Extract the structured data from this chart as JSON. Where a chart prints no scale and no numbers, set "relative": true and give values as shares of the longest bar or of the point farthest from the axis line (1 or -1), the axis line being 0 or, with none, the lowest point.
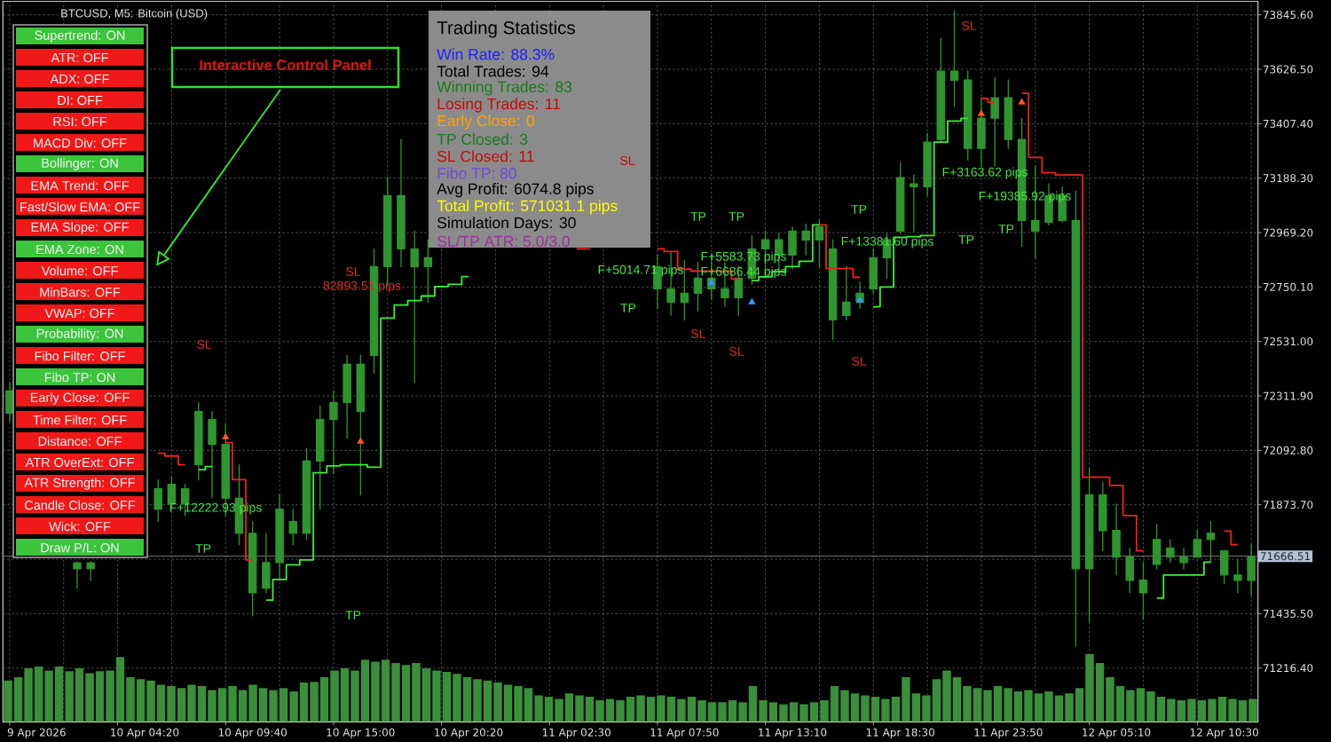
{
  "chart_data": [
    {
      "type": "candlestick",
      "title": "BTCUSD, M5: Bitcoin (USD)",
      "color": "#2f952f",
      "categories": [
        null,
        null,
        "9 Apr 2026",
        null,
        null,
        null,
        null,
        null,
        null,
        null,
        "10 Apr 04:20",
        null,
        null,
        null,
        null,
        null,
        null,
        null,
        "10 Apr 09:40",
        null,
        null,
        null,
        null,
        null,
        null,
        null,
        "10 Apr 15:00",
        null,
        null,
        null,
        null,
        null,
        null,
        null,
        "10 Apr 20:20",
        null,
        null,
        null,
        null,
        null,
        null,
        null,
        "11 Apr 02:30",
        null,
        null,
        null,
        null,
        null,
        null,
        null,
        "11 Apr 07:50",
        null,
        null,
        null,
        null,
        null,
        null,
        null,
        "11 Apr 13:10",
        null,
        null,
        null,
        null,
        null,
        null,
        null,
        "11 Apr 18:30",
        null,
        null,
        null,
        null,
        null,
        null,
        null,
        "11 Apr 23:50",
        null,
        null,
        null,
        null,
        null,
        null,
        null,
        "12 Apr 05:10",
        null,
        null,
        null,
        null,
        null,
        null,
        null,
        "12 Apr 10:30",
        null,
        null
      ],
      "ohlc": [
        [
          72242,
          72367,
          72206,
          72332
        ],
        null,
        null,
        null,
        null,
        [
          71640,
          71645,
          71538,
          71616
        ],
        [
          71616,
          71645,
          71570,
          71640
        ],
        null,
        null,
        null,
        null,
        [
          71856,
          71974,
          71806,
          71938
        ],
        [
          71877,
          71985,
          71856,
          71956
        ],
        [
          71877,
          71956,
          71831,
          71938
        ],
        [
          72035,
          72285,
          71974,
          72249
        ],
        [
          72217,
          72249,
          71902,
          72117
        ],
        [
          72117,
          72199,
          71830,
          71900
        ],
        [
          71900,
          72035,
          71713,
          71759
        ],
        [
          71759,
          71806,
          71427,
          71520
        ],
        [
          71538,
          71759,
          71520,
          71641
        ],
        [
          71641,
          71913,
          71570,
          71856
        ],
        [
          71806,
          71856,
          71713,
          71759
        ],
        [
          71759,
          72100,
          71734,
          72050
        ],
        [
          72050,
          72271,
          71856,
          72217
        ],
        [
          72217,
          72332,
          71999,
          72285
        ],
        [
          72285,
          72475,
          72142,
          72439
        ],
        [
          72439,
          72475,
          71913,
          72249
        ],
        [
          72475,
          72904,
          72403,
          72832
        ],
        [
          72832,
          73190,
          72761,
          73118
        ],
        [
          73118,
          73344,
          72832,
          72904
        ],
        [
          72904,
          72975,
          72367,
          72832
        ],
        [
          72832,
          72940,
          72689,
          72868
        ],
        null,
        null,
        null,
        null,
        null,
        null,
        null,
        null,
        null,
        null,
        null,
        null,
        null,
        null,
        null,
        null,
        [
          72832,
          72879,
          72664,
          72743
        ],
        [
          72743,
          72893,
          72636,
          72689
        ],
        [
          72689,
          72857,
          72618,
          72725
        ],
        [
          72725,
          72850,
          72653,
          72786
        ],
        [
          72786,
          72879,
          72700,
          72743
        ],
        [
          72743,
          72850,
          72671,
          72707
        ],
        [
          72707,
          72832,
          72636,
          72786
        ],
        [
          72786,
          72957,
          72761,
          72904
        ],
        [
          72904,
          72975,
          72807,
          72940
        ],
        [
          72940,
          72968,
          72814,
          72879
        ],
        [
          72879,
          72993,
          72822,
          72975
        ],
        [
          72975,
          73004,
          72879,
          72940
        ],
        [
          72940,
          73018,
          72832,
          72993
        ],
        [
          72904,
          72940,
          72539,
          72618
        ],
        [
          72636,
          72832,
          72618,
          72689
        ],
        [
          72689,
          72771,
          72664,
          72725
        ],
        [
          72743,
          72904,
          72725,
          72868
        ],
        [
          72868,
          72965,
          72786,
          72940
        ],
        [
          72975,
          73251,
          72965,
          73190
        ],
        [
          73165,
          73201,
          72975,
          73154
        ],
        [
          73154,
          73369,
          73118,
          73333
        ],
        [
          73344,
          73751,
          73333,
          73619
        ],
        [
          73619,
          73862,
          73476,
          73583
        ],
        [
          73583,
          73619,
          73261,
          73308
        ],
        [
          73308,
          73512,
          73236,
          73430
        ],
        [
          73430,
          73594,
          73236,
          73512
        ],
        [
          73512,
          73583,
          73308,
          73344
        ],
        [
          73344,
          73430,
          72914,
          73018
        ],
        [
          73018,
          73236,
          72868,
          72975
        ],
        [
          73011,
          73165,
          73000,
          73118
        ],
        [
          73118,
          73154,
          73011,
          73018
        ],
        [
          73018,
          73136,
          71305,
          71616
        ],
        [
          71616,
          72020,
          71402,
          71913
        ],
        [
          71913,
          71963,
          71688,
          71770
        ],
        [
          71770,
          71877,
          71591,
          71663
        ],
        [
          71663,
          71699,
          71520,
          71570
        ],
        [
          71570,
          71641,
          71412,
          71520
        ],
        [
          71634,
          71795,
          71616,
          71734
        ],
        [
          71700,
          71734,
          71641,
          71663
        ],
        [
          71663,
          71699,
          71616,
          71641
        ],
        [
          71663,
          71770,
          71663,
          71734
        ],
        [
          71734,
          71806,
          71641,
          71759
        ],
        [
          71688,
          71688,
          71556,
          71591
        ],
        [
          71591,
          71652,
          71520,
          71570
        ],
        [
          71570,
          71713,
          71509,
          71663
        ]
      ],
      "series": [
        {
          "type": "step",
          "color": "#3cee3c",
          "values": [
            null,
            null,
            null,
            null,
            null,
            null,
            null,
            null,
            null,
            null,
            null,
            null,
            null,
            null,
            72015,
            72028,
            null,
            null,
            null,
            71490,
            71573,
            71632,
            71652,
            72003,
            72030,
            72035,
            72035,
            72025,
            72625,
            72678,
            72696,
            72714,
            72752,
            72761,
            72792,
            null,
            null,
            null,
            null,
            null,
            null,
            null,
            null,
            null,
            null,
            null,
            null,
            null,
            null,
            null,
            null,
            null,
            null,
            null,
            null,
            72776,
            72791,
            72812,
            72832,
            72854,
            73000,
            null,
            null,
            null,
            72671,
            72750,
            72950,
            72953,
            72957,
            73333,
            73418,
            73429,
            null,
            null,
            null,
            null,
            null,
            null,
            null,
            null,
            null,
            null,
            null,
            null,
            null,
            71498,
            71591,
            71591,
            71591,
            71643,
            null,
            null,
            null
          ]
        },
        {
          "type": "step",
          "color": "#ee2020",
          "values": [
            null,
            null,
            null,
            null,
            null,
            null,
            null,
            null,
            null,
            null,
            null,
            72081,
            72070,
            72035,
            null,
            null,
            72124,
            71975,
            71652,
            null,
            null,
            null,
            null,
            null,
            null,
            null,
            null,
            null,
            null,
            null,
            null,
            null,
            null,
            null,
            null,
            null,
            null,
            null,
            null,
            null,
            null,
            null,
            72904,
            72904,
            null,
            null,
            null,
            null,
            72904,
            72893,
            72822,
            72814,
            72814,
            72814,
            72782,
            null,
            null,
            null,
            null,
            null,
            73000,
            72825,
            72825,
            72789,
            null,
            null,
            null,
            null,
            null,
            null,
            null,
            null,
            73509,
            73494,
            null,
            73530,
            73272,
            73210,
            73201,
            73201,
            71985,
            71985,
            71952,
            71830,
            71688,
            null,
            null,
            null,
            null,
            null,
            71768,
            71713,
            null
          ]
        },
        {
          "type": "scatter",
          "marker": "triangle",
          "color": "#ff5a1e",
          "values": [
            null,
            null,
            null,
            null,
            null,
            null,
            null,
            null,
            null,
            null,
            null,
            null,
            null,
            null,
            null,
            null,
            72146,
            null,
            null,
            null,
            null,
            null,
            null,
            null,
            null,
            null,
            72128,
            null,
            null,
            null,
            null,
            null,
            null,
            null,
            null,
            null,
            null,
            null,
            null,
            null,
            null,
            null,
            null,
            null,
            null,
            null,
            null,
            null,
            null,
            null,
            null,
            null,
            null,
            null,
            null,
            null,
            null,
            null,
            null,
            null,
            null,
            null,
            null,
            null,
            null,
            null,
            null,
            null,
            null,
            null,
            null,
            null,
            73447,
            null,
            null,
            73494,
            null,
            null,
            null,
            null,
            null,
            null,
            null,
            null,
            null,
            null,
            null,
            null,
            null,
            null,
            null,
            null,
            null
          ]
        },
        {
          "type": "scatter",
          "marker": "triangle",
          "color": "#2f9bff",
          "values": [
            null,
            null,
            null,
            null,
            null,
            null,
            null,
            null,
            null,
            null,
            null,
            null,
            null,
            null,
            null,
            null,
            null,
            null,
            null,
            null,
            null,
            null,
            null,
            null,
            null,
            null,
            null,
            null,
            null,
            null,
            null,
            null,
            null,
            null,
            null,
            null,
            null,
            null,
            null,
            null,
            null,
            null,
            null,
            null,
            null,
            null,
            null,
            null,
            null,
            null,
            null,
            null,
            72768,
            null,
            null,
            72689,
            null,
            null,
            null,
            null,
            null,
            null,
            null,
            72696,
            null,
            null,
            null,
            null,
            null,
            null,
            null,
            null,
            null,
            null,
            null,
            null,
            null,
            null,
            null,
            null,
            null,
            null,
            null,
            null,
            null,
            null,
            null,
            null,
            null,
            null,
            null,
            null,
            null
          ]
        }
      ],
      "annotations": [
        "82893.51 pips",
        "SL",
        "SL",
        "SL",
        "SL",
        "SL",
        "SL",
        "SL",
        "TP",
        "TP",
        "TP",
        "TP",
        "TP",
        "TP",
        "TP",
        "TP",
        "F+12222.93 pips",
        "F+5014.71 pips",
        "F+5583.73 pips",
        "F+6686.44 pips",
        "F+13381.60 pips",
        "F+3163.62 pips",
        "F+19385.92 pips"
      ],
      "ylim": [
        71000,
        73900
      ],
      "yticks": [
        {
          "value": 71216.4,
          "label": "71216.40"
        },
        {
          "value": 71435.5,
          "label": "71435.50"
        },
        {
          "value": 71654.6,
          "label": null
        },
        {
          "value": 71873.7,
          "label": "71873.70"
        },
        {
          "value": 72092.8,
          "label": "72092.80"
        },
        {
          "value": 72311.9,
          "label": "72311.90"
        },
        {
          "value": 72531.0,
          "label": "72531.00"
        },
        {
          "value": 72750.1,
          "label": "72750.10"
        },
        {
          "value": 72969.2,
          "label": "72969.20"
        },
        {
          "value": 73188.3,
          "label": "73188.30"
        },
        {
          "value": 73407.4,
          "label": "73407.40"
        },
        {
          "value": 73626.5,
          "label": "73626.50"
        },
        {
          "value": 73845.6,
          "label": "73845.60"
        }
      ],
      "grid": true,
      "ref_lines": [
        {
          "axis": "y",
          "value": 71666.51,
          "label": "71666.51",
          "color": "#9a9a9a"
        }
      ]
    },
    {
      "type": "bar",
      "relative": true,
      "color": "#3a8f3a",
      "categories": [
        null,
        null,
        null,
        null,
        null,
        null,
        null,
        null,
        null,
        null,
        null,
        null,
        null,
        null,
        null,
        null,
        null,
        null,
        null,
        null,
        null,
        null,
        null,
        null,
        null,
        null,
        null,
        null,
        null,
        null,
        null,
        null,
        null,
        null,
        null,
        null,
        null,
        null,
        null,
        null,
        null,
        null,
        null,
        null,
        null,
        null,
        null,
        null,
        null,
        null,
        null,
        null,
        null,
        null,
        null,
        null,
        null,
        null,
        null,
        null,
        null,
        null,
        null,
        null,
        null,
        null,
        null,
        null,
        null,
        null,
        null,
        null,
        null,
        null,
        null,
        null,
        null,
        null,
        null,
        null,
        null,
        null,
        null,
        null,
        null,
        null,
        null,
        null,
        null,
        null,
        null,
        null,
        null,
        null,
        null,
        null,
        null,
        null,
        null,
        null,
        null,
        null,
        null,
        null,
        null,
        null,
        null,
        null,
        null,
        null,
        null,
        null,
        null,
        null,
        null,
        null,
        null,
        null,
        null,
        null,
        null,
        null,
        null
      ],
      "values": [
        0.61,
        0.66,
        0.79,
        0.82,
        0.76,
        0.82,
        0.75,
        0.79,
        0.72,
        0.75,
        0.76,
        0.96,
        0.66,
        0.63,
        0.61,
        0.55,
        0.53,
        0.5,
        0.55,
        0.53,
        0.47,
        0.5,
        0.53,
        0.47,
        0.55,
        0.5,
        0.47,
        0.5,
        0.45,
        0.58,
        0.59,
        0.66,
        0.76,
        0.79,
        0.76,
        0.92,
        0.89,
        0.92,
        0.87,
        0.84,
        0.87,
        0.79,
        0.76,
        0.74,
        0.71,
        0.66,
        0.63,
        0.61,
        0.58,
        0.55,
        0.53,
        0.5,
        0.39,
        0.37,
        0.34,
        0.42,
        0.39,
        0.37,
        0.32,
        0.34,
        0.32,
        0.37,
        0.39,
        0.37,
        0.39,
        0.37,
        0.34,
        0.37,
        0.32,
        0.29,
        0.29,
        0.32,
        0.29,
        0.53,
        0.32,
        0.29,
        0.26,
        0.29,
        0.26,
        0.29,
        0.32,
        0.53,
        0.47,
        0.42,
        0.39,
        0.37,
        0.34,
        0.37,
        0.66,
        0.42,
        0.39,
        0.63,
        0.76,
        0.66,
        0.53,
        0.5,
        0.47,
        0.53,
        0.5,
        0.45,
        0.47,
        0.42,
        0.45,
        0.39,
        0.42,
        0.5,
        1,
        0.87,
        0.66,
        0.53,
        0.47,
        0.5,
        0.45,
        0.37,
        0.34,
        0.32,
        0.34,
        0.32,
        0.34,
        0.37,
        0.34,
        0.32,
        0.34
      ]
    },
    {
      "type": "other",
      "title": "Interactive Control Panel",
      "categories": [
        "Supertrend: ON",
        "ATR: OFF",
        "ADX: OFF",
        "DI: OFF",
        "RSI: OFF",
        "MACD Div: OFF",
        "Bollinger: ON",
        "EMA Trend: OFF",
        "Fast/Slow EMA: OFF",
        "EMA Slope: OFF",
        "EMA Zone: ON",
        "Volume: OFF",
        "MinBars: OFF",
        "VWAP: OFF",
        "Probability: ON",
        "Fibo Filter: OFF",
        "Fibo TP: ON",
        "Early Close: OFF",
        "Time Filter: OFF",
        "Distance: OFF",
        "ATR OverExt: OFF",
        "ATR Strength: OFF",
        "Candle Close: OFF",
        "Wick: OFF",
        "Draw P/L: ON"
      ],
      "colors": [
        "#3cc43c",
        "#f01818",
        "#f01818",
        "#f01818",
        "#f01818",
        "#f01818",
        "#3cc43c",
        "#f01818",
        "#f01818",
        "#f01818",
        "#3cc43c",
        "#f01818",
        "#f01818",
        "#f01818",
        "#3cc43c",
        "#f01818",
        "#3cc43c",
        "#f01818",
        "#f01818",
        "#f01818",
        "#f01818",
        "#f01818",
        "#f01818",
        "#f01818",
        "#3cc43c"
      ]
    },
    {
      "type": "other",
      "title": "Trading Statistics",
      "categories": [
        "Win Rate: 88.3%",
        "Total Trades: 94",
        "Winning Trades: 83",
        "Losing Trades: 11",
        "Early Close: 0",
        "TP Closed: 3",
        "SL Closed: 11",
        "Fibo TP: 80",
        "Avg Profit: 6074.8 pips",
        "Total Profit: 571031.1 pips",
        "Simulation Days: 30",
        "SL/TP ATR: 5.0/3.0"
      ],
      "colors": [
        "#1f1fff",
        "#000000",
        "#1a7a1a",
        "#c80a0a",
        "#ffa500",
        "#1a7a1a",
        "#c80a0a",
        "#6f48d8",
        "#000000",
        "#ffff00",
        "#000000",
        "#993399"
      ]
    }
  ]
}
